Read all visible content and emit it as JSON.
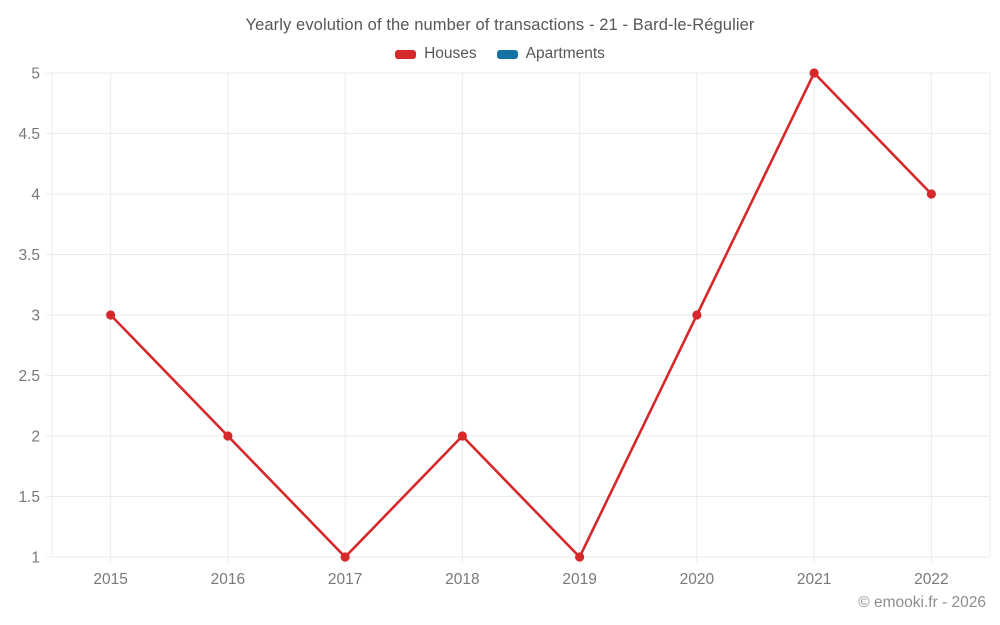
{
  "chart": {
    "title": "Yearly evolution of the number of transactions - 21 - Bard-le-Régulier",
    "footer": "© emooki.fr - 2026"
  },
  "chart_data": {
    "type": "line",
    "title": "Yearly evolution of the number of transactions - 21 - Bard-le-Régulier",
    "categories": [
      "2015",
      "2016",
      "2017",
      "2018",
      "2019",
      "2020",
      "2021",
      "2022"
    ],
    "series": [
      {
        "name": "Houses",
        "values": [
          3,
          2,
          1,
          2,
          1,
          3,
          5,
          4
        ],
        "color": "#d6292b"
      },
      {
        "name": "Apartments",
        "values": [],
        "color": "#1472a4"
      }
    ],
    "xlabel": "",
    "ylabel": "",
    "ylim": [
      1,
      5
    ],
    "ytick_step": 0.5,
    "grid": true,
    "legend_position": "top"
  },
  "colors": {
    "background": "#ffffff",
    "grid": "#ebebeb",
    "tick_text": "#77797c",
    "title_text": "#54575b",
    "footer_text": "#8b8e92"
  }
}
